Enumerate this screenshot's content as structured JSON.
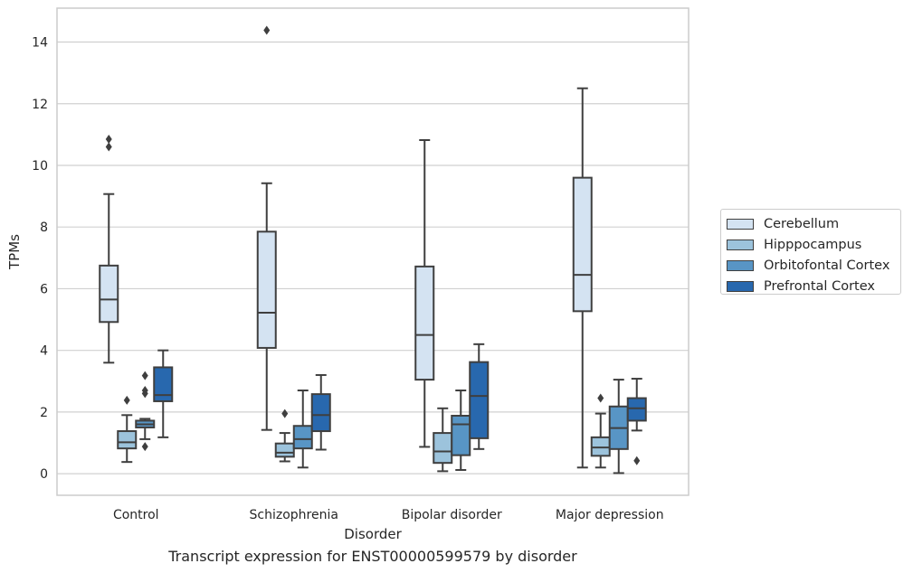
{
  "chart_data": {
    "type": "box",
    "caption": "Transcript expression for ENST00000599579 by disorder",
    "xlabel": "Disorder",
    "ylabel": "TPMs",
    "ylim": [
      -0.7,
      15.1
    ],
    "yticks": [
      0,
      2,
      4,
      6,
      8,
      10,
      12,
      14
    ],
    "grid": "horizontal",
    "legend_position": "right",
    "categories": [
      "Control",
      "Schizophrenia",
      "Bipolar disorder",
      "Major depression"
    ],
    "series": [
      {
        "name": "Cerebellum",
        "color": "#d4e3f2",
        "boxes": [
          {
            "whislo": 3.6,
            "q1": 4.92,
            "med": 5.65,
            "q3": 6.75,
            "whishi": 9.07,
            "fliers": [
              10.6,
              10.85
            ]
          },
          {
            "whislo": 1.42,
            "q1": 4.08,
            "med": 5.22,
            "q3": 7.85,
            "whishi": 9.42,
            "fliers": [
              14.38
            ]
          },
          {
            "whislo": 0.87,
            "q1": 3.05,
            "med": 4.5,
            "q3": 6.72,
            "whishi": 10.82,
            "fliers": []
          },
          {
            "whislo": 0.2,
            "q1": 5.27,
            "med": 6.45,
            "q3": 9.6,
            "whishi": 12.5,
            "fliers": []
          }
        ]
      },
      {
        "name": "Hipppocampus",
        "color": "#9cc3dc",
        "boxes": [
          {
            "whislo": 0.38,
            "q1": 0.82,
            "med": 1.02,
            "q3": 1.38,
            "whishi": 1.9,
            "fliers": [
              2.38
            ]
          },
          {
            "whislo": 0.4,
            "q1": 0.55,
            "med": 0.68,
            "q3": 0.98,
            "whishi": 1.32,
            "fliers": [
              1.95
            ]
          },
          {
            "whislo": 0.08,
            "q1": 0.35,
            "med": 0.72,
            "q3": 1.32,
            "whishi": 2.12,
            "fliers": []
          },
          {
            "whislo": 0.2,
            "q1": 0.58,
            "med": 0.85,
            "q3": 1.18,
            "whishi": 1.95,
            "fliers": [
              2.45
            ]
          }
        ]
      },
      {
        "name": "Orbitofontal Cortex",
        "color": "#5895c5",
        "boxes": [
          {
            "whislo": 1.12,
            "q1": 1.5,
            "med": 1.6,
            "q3": 1.72,
            "whishi": 1.78,
            "fliers": [
              0.88,
              2.6,
              2.7,
              3.18
            ]
          },
          {
            "whislo": 0.2,
            "q1": 0.82,
            "med": 1.12,
            "q3": 1.55,
            "whishi": 2.7,
            "fliers": []
          },
          {
            "whislo": 0.12,
            "q1": 0.6,
            "med": 1.6,
            "q3": 1.88,
            "whishi": 2.7,
            "fliers": []
          },
          {
            "whislo": 0.02,
            "q1": 0.8,
            "med": 1.48,
            "q3": 2.18,
            "whishi": 3.05,
            "fliers": []
          }
        ]
      },
      {
        "name": "Prefrontal Cortex",
        "color": "#2868ae",
        "boxes": [
          {
            "whislo": 1.18,
            "q1": 2.35,
            "med": 2.55,
            "q3": 3.45,
            "whishi": 4.0,
            "fliers": []
          },
          {
            "whislo": 0.78,
            "q1": 1.38,
            "med": 1.9,
            "q3": 2.58,
            "whishi": 3.2,
            "fliers": []
          },
          {
            "whislo": 0.8,
            "q1": 1.15,
            "med": 2.52,
            "q3": 3.62,
            "whishi": 4.2,
            "fliers": []
          },
          {
            "whislo": 1.4,
            "q1": 1.72,
            "med": 2.12,
            "q3": 2.45,
            "whishi": 3.08,
            "fliers": [
              0.42
            ]
          }
        ]
      }
    ]
  }
}
